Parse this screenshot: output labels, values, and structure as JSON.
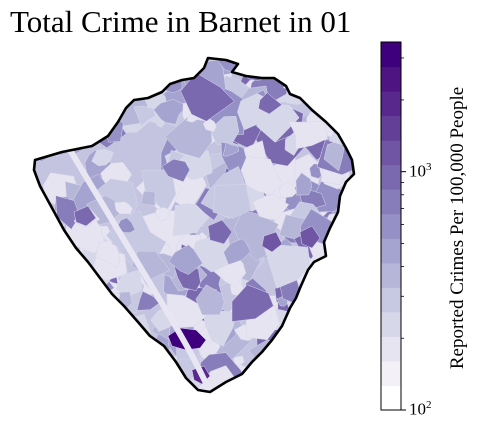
{
  "title": "Total Crime in Barnet in 01",
  "colorbar": {
    "label": "Reported Crimes Per 100,000 People",
    "scale": "log",
    "range": [
      100,
      3500
    ],
    "ticks": [
      {
        "base": "10",
        "exp": "2",
        "value": 100
      },
      {
        "base": "10",
        "exp": "3",
        "value": 1000
      }
    ],
    "colors": [
      "#ffffff",
      "#f3f0f7",
      "#e6e4f0",
      "#d7d7ea",
      "#c7c8e2",
      "#b6b6d8",
      "#a5a3cf",
      "#9590c6",
      "#877dbb",
      "#7b69af",
      "#6f55a4",
      "#643f98",
      "#59288d",
      "#4d1482",
      "#3f007d"
    ]
  },
  "map": {
    "region": "Barnet",
    "outline_color": "#000000",
    "fill_colors": [
      "#e6e4f0",
      "#d7d7ea",
      "#c7c8e2",
      "#b6b6d8",
      "#a5a3cf",
      "#9590c6",
      "#877dbb",
      "#7b69af"
    ]
  }
}
